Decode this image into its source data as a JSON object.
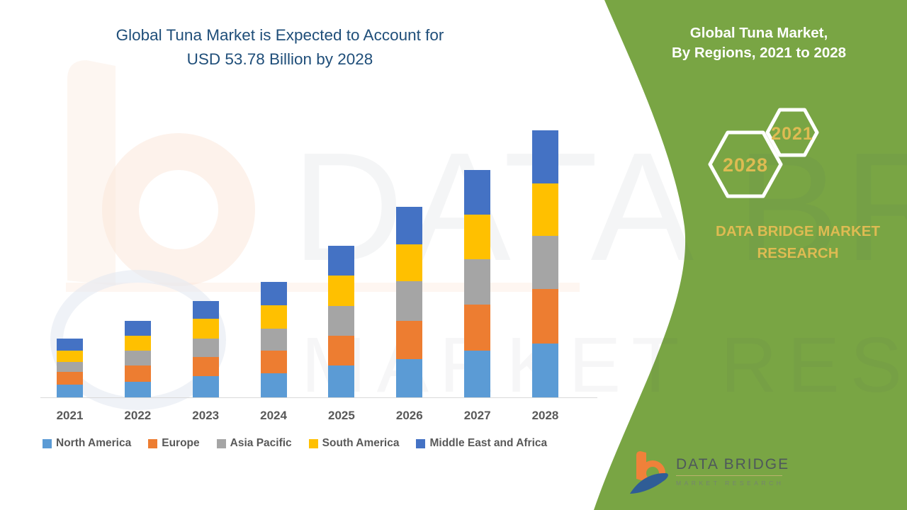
{
  "colors": {
    "green": "#79A544",
    "title_blue": "#1F4E79",
    "gold": "#DEBB52",
    "axis_gray": "#D9D9D9",
    "label_gray": "#595959",
    "logo_text": "#4E585C",
    "logo_tagline": "#75856F",
    "logo_orange": "#F0813A",
    "logo_blue": "#2F5D96"
  },
  "chart": {
    "title_line1": "Global Tuna Market is Expected to Account for",
    "title_line2": "USD 53.78 Billion by 2028"
  },
  "chart_data": {
    "type": "bar",
    "stacked": true,
    "unit": "USD Billion",
    "title": "Global Tuna Market is Expected to Account for USD 53.78 Billion by 2028",
    "xlabel": "",
    "ylabel": "",
    "grid": false,
    "legend_position": "bottom",
    "categories": [
      "2021",
      "2022",
      "2023",
      "2024",
      "2025",
      "2026",
      "2027",
      "2028"
    ],
    "series": [
      {
        "name": "North America",
        "color": "#5B9BD5",
        "values": [
          2.6,
          3.1,
          4.3,
          4.9,
          6.4,
          7.7,
          9.4,
          10.8
        ]
      },
      {
        "name": "Europe",
        "color": "#ED7D31",
        "values": [
          2.6,
          3.4,
          3.9,
          4.6,
          6.1,
          7.7,
          9.3,
          11.0
        ]
      },
      {
        "name": "Asia Pacific",
        "color": "#A5A5A5",
        "values": [
          2.0,
          3.0,
          3.7,
          4.4,
          6.0,
          8.0,
          9.1,
          10.8
        ]
      },
      {
        "name": "South America",
        "color": "#FFC000",
        "values": [
          2.3,
          3.0,
          3.9,
          4.7,
          6.1,
          7.4,
          9.1,
          10.6
        ]
      },
      {
        "name": "Middle East and Africa",
        "color": "#4472C4",
        "values": [
          2.3,
          3.0,
          3.7,
          4.7,
          6.0,
          7.6,
          9.0,
          10.6
        ]
      }
    ],
    "totals": [
      11.8,
      15.5,
      19.5,
      23.3,
      30.6,
      38.4,
      45.9,
      53.78
    ]
  },
  "side_panel": {
    "heading_line1": "Global Tuna Market,",
    "heading_line2": "By Regions, 2021 to 2028",
    "hexagon_large_label": "2028",
    "hexagon_small_label": "2021",
    "brand": "DATA BRIDGE MARKET RESEARCH"
  },
  "logo": {
    "title": "DATA BRIDGE",
    "tagline": "MARKET RESEARCH"
  },
  "watermark": {
    "line1": "DATA BRIDGE",
    "line2": "MARKET RESEARCH"
  }
}
